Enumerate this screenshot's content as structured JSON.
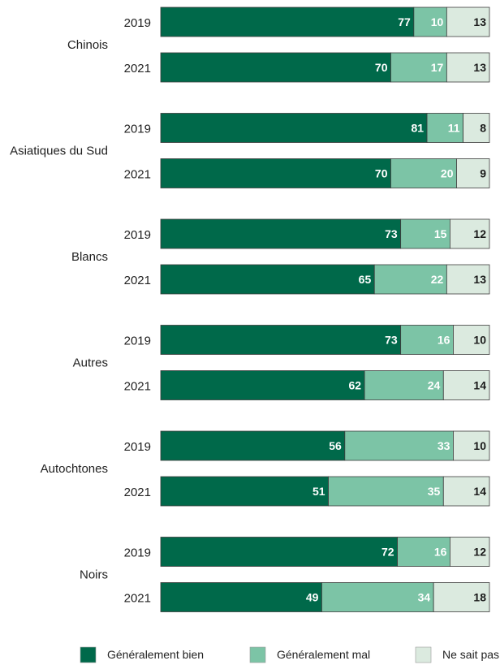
{
  "chart_data": {
    "type": "bar",
    "orientation": "horizontal",
    "stacked": true,
    "xlim": [
      0,
      100
    ],
    "grid": false,
    "legend_position": "bottom",
    "groups": [
      {
        "label": "Chinois",
        "rows": [
          {
            "year": "2019",
            "values": [
              77,
              10,
              13
            ]
          },
          {
            "year": "2021",
            "values": [
              70,
              17,
              13
            ]
          }
        ]
      },
      {
        "label": "Asiatiques du Sud",
        "rows": [
          {
            "year": "2019",
            "values": [
              81,
              11,
              8
            ]
          },
          {
            "year": "2021",
            "values": [
              70,
              20,
              9
            ]
          }
        ]
      },
      {
        "label": "Blancs",
        "rows": [
          {
            "year": "2019",
            "values": [
              73,
              15,
              12
            ]
          },
          {
            "year": "2021",
            "values": [
              65,
              22,
              13
            ]
          }
        ]
      },
      {
        "label": "Autres",
        "rows": [
          {
            "year": "2019",
            "values": [
              73,
              16,
              10
            ]
          },
          {
            "year": "2021",
            "values": [
              62,
              24,
              14
            ]
          }
        ]
      },
      {
        "label": "Autochtones",
        "rows": [
          {
            "year": "2019",
            "values": [
              56,
              33,
              10
            ]
          },
          {
            "year": "2021",
            "values": [
              51,
              35,
              14
            ]
          }
        ]
      },
      {
        "label": "Noirs",
        "rows": [
          {
            "year": "2019",
            "values": [
              72,
              16,
              12
            ]
          },
          {
            "year": "2021",
            "values": [
              49,
              34,
              18
            ]
          }
        ]
      }
    ],
    "series": [
      {
        "name": "Généralement bien",
        "color": "#00694a",
        "label_color": "#ffffff"
      },
      {
        "name": "Généralement mal",
        "color": "#7cc4a6",
        "label_color": "#ffffff"
      },
      {
        "name": "Ne sait pas",
        "color": "#dbeadf",
        "label_color": "#1a1a1a"
      }
    ]
  }
}
